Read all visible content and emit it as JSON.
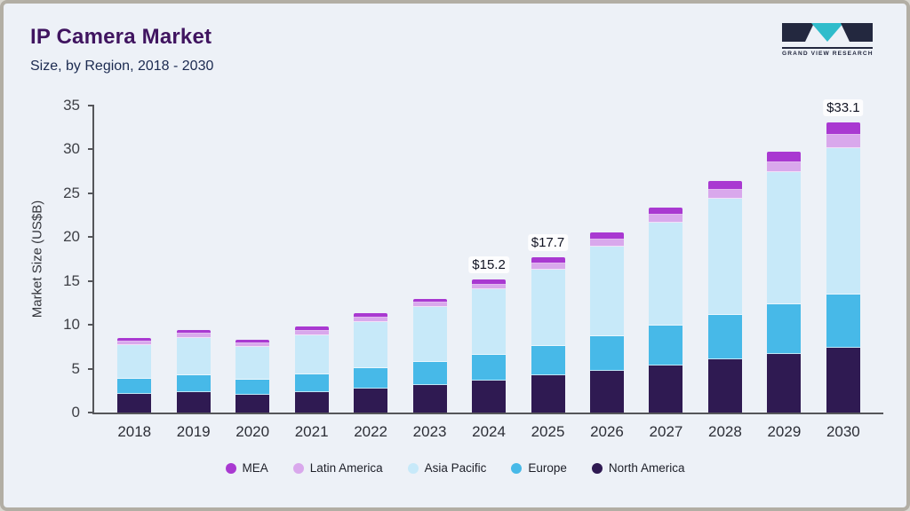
{
  "header": {
    "title": "IP Camera Market",
    "subtitle": "Size, by Region, 2018 - 2030",
    "logo_text": "GRAND VIEW RESEARCH"
  },
  "colors": {
    "background": "#edf1f7",
    "frame_border": "#b2aea4",
    "title": "#401560",
    "subtitle": "#1b2a50",
    "axis": "#55565a",
    "logo_dark": "#23283f",
    "logo_teal": "#2fbccb"
  },
  "chart_data": {
    "type": "bar",
    "stacked": true,
    "title": "IP Camera Market",
    "subtitle": "Size, by Region, 2018 - 2030",
    "xlabel": "",
    "ylabel": "Market Size (US$B)",
    "ylim": [
      0,
      35
    ],
    "yticks": [
      0,
      5,
      10,
      15,
      20,
      25,
      30,
      35
    ],
    "grid": false,
    "legend_position": "bottom",
    "categories": [
      "2018",
      "2019",
      "2020",
      "2021",
      "2022",
      "2023",
      "2024",
      "2025",
      "2026",
      "2027",
      "2028",
      "2029",
      "2030"
    ],
    "series": [
      {
        "name": "North America",
        "color": "#2f1a52",
        "values": [
          2.2,
          2.4,
          2.1,
          2.4,
          2.8,
          3.2,
          3.7,
          4.3,
          4.9,
          5.5,
          6.2,
          6.8,
          7.5
        ]
      },
      {
        "name": "Europe",
        "color": "#47b9e8",
        "values": [
          1.7,
          1.9,
          1.7,
          2.0,
          2.3,
          2.7,
          3.0,
          3.4,
          3.9,
          4.5,
          5.0,
          5.6,
          6.0
        ]
      },
      {
        "name": "Asia Pacific",
        "color": "#c7e9f9",
        "values": [
          4.0,
          4.4,
          3.9,
          4.6,
          5.4,
          6.3,
          7.5,
          8.8,
          10.3,
          11.8,
          13.4,
          15.2,
          16.8
        ]
      },
      {
        "name": "Latin America",
        "color": "#d9a8ec",
        "values": [
          0.3,
          0.35,
          0.3,
          0.4,
          0.4,
          0.4,
          0.5,
          0.6,
          0.7,
          0.8,
          0.9,
          1.0,
          1.4
        ]
      },
      {
        "name": "MEA",
        "color": "#a939d1",
        "values": [
          0.3,
          0.35,
          0.3,
          0.4,
          0.4,
          0.4,
          0.5,
          0.6,
          0.7,
          0.8,
          0.9,
          1.1,
          1.4
        ]
      }
    ],
    "totals": [
      8.5,
      9.4,
      8.3,
      9.8,
      11.3,
      13.0,
      15.2,
      17.7,
      20.5,
      23.4,
      26.4,
      29.7,
      33.1
    ],
    "total_labels": {
      "2024": "$15.2",
      "2025": "$17.7",
      "2030": "$33.1"
    },
    "legend": [
      "MEA",
      "Latin America",
      "Asia Pacific",
      "Europe",
      "North America"
    ]
  }
}
